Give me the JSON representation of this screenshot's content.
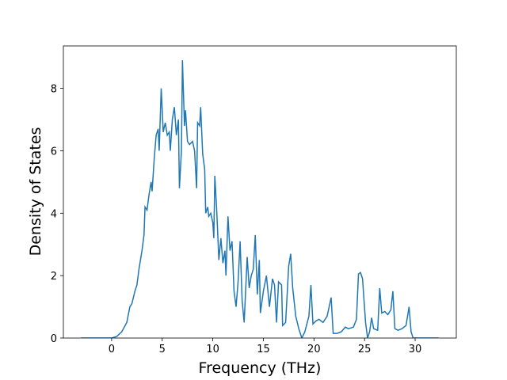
{
  "chart_data": {
    "type": "line",
    "xlabel": "Frequency (THz)",
    "ylabel": "Density of States",
    "color": "#1f77b4",
    "xlim": [
      -4.77,
      34.07
    ],
    "ylim": [
      0,
      9.36
    ],
    "xticks": [
      0,
      5,
      10,
      15,
      20,
      25,
      30
    ],
    "yticks": [
      0,
      2,
      4,
      6,
      8
    ],
    "x": [
      -3,
      0,
      0.5,
      1,
      1.5,
      1.8,
      2.0,
      2.3,
      2.5,
      2.7,
      3.0,
      3.2,
      3.3,
      3.5,
      3.7,
      3.9,
      4.0,
      4.2,
      4.4,
      4.6,
      4.7,
      4.9,
      5.1,
      5.3,
      5.5,
      5.7,
      5.8,
      6.0,
      6.2,
      6.4,
      6.6,
      6.7,
      6.9,
      7.0,
      7.2,
      7.3,
      7.5,
      7.7,
      8.0,
      8.2,
      8.4,
      8.5,
      8.7,
      8.8,
      9.0,
      9.2,
      9.3,
      9.5,
      9.6,
      9.8,
      10.0,
      10.1,
      10.2,
      10.4,
      10.6,
      10.8,
      11.0,
      11.2,
      11.3,
      11.5,
      11.7,
      11.9,
      12.1,
      12.3,
      12.5,
      12.7,
      12.9,
      13.1,
      13.4,
      13.6,
      13.8,
      14.0,
      14.2,
      14.4,
      14.6,
      14.7,
      15.0,
      15.3,
      15.6,
      15.9,
      16.1,
      16.3,
      16.5,
      16.8,
      16.9,
      17.2,
      17.5,
      17.7,
      17.9,
      18.2,
      18.5,
      18.8,
      19.1,
      19.5,
      19.7,
      19.9,
      20.2,
      20.5,
      20.9,
      21.3,
      21.7,
      21.9,
      22.3,
      22.7,
      23.1,
      23.4,
      23.9,
      24.2,
      24.4,
      24.6,
      24.8,
      25.1,
      25.3,
      25.5,
      25.7,
      25.9,
      26.3,
      26.5,
      26.7,
      27.0,
      27.3,
      27.6,
      27.8,
      28.0,
      28.3,
      28.7,
      29.1,
      29.4,
      29.6,
      29.8,
      32.3
    ],
    "values": [
      0,
      0,
      0.05,
      0.2,
      0.5,
      1.0,
      1.1,
      1.5,
      1.7,
      2.2,
      2.8,
      3.3,
      4.2,
      4.1,
      4.6,
      5.0,
      4.7,
      5.7,
      6.5,
      6.7,
      6.0,
      8.0,
      6.6,
      6.9,
      6.5,
      6.6,
      6.0,
      7.0,
      7.4,
      6.5,
      7.0,
      4.8,
      6.0,
      8.9,
      6.8,
      7.3,
      6.3,
      6.2,
      6.3,
      6.0,
      4.8,
      6.9,
      6.8,
      7.4,
      5.9,
      5.4,
      4.0,
      4.2,
      3.9,
      4.0,
      3.7,
      3.2,
      5.2,
      4.0,
      2.5,
      3.2,
      2.4,
      2.8,
      2.0,
      3.9,
      2.8,
      3.1,
      1.5,
      1.0,
      1.8,
      3.1,
      1.2,
      0.5,
      2.6,
      1.6,
      2.0,
      2.2,
      3.3,
      1.4,
      2.5,
      0.8,
      1.5,
      2.0,
      1.0,
      1.9,
      1.7,
      0.5,
      1.8,
      1.7,
      0.4,
      0.5,
      2.3,
      2.7,
      1.6,
      0.7,
      0.3,
      0,
      0.2,
      0.7,
      1.7,
      0.45,
      0.55,
      0.6,
      0.5,
      0.7,
      1.3,
      0.15,
      0.15,
      0.2,
      0.35,
      0.3,
      0.35,
      0.6,
      2.05,
      2.1,
      1.9,
      0.5,
      0,
      0.2,
      0.65,
      0.3,
      0.25,
      1.6,
      0.8,
      0.85,
      0.75,
      0.9,
      1.5,
      0.3,
      0.25,
      0.3,
      0.4,
      1.0,
      0.2,
      0,
      0
    ]
  }
}
